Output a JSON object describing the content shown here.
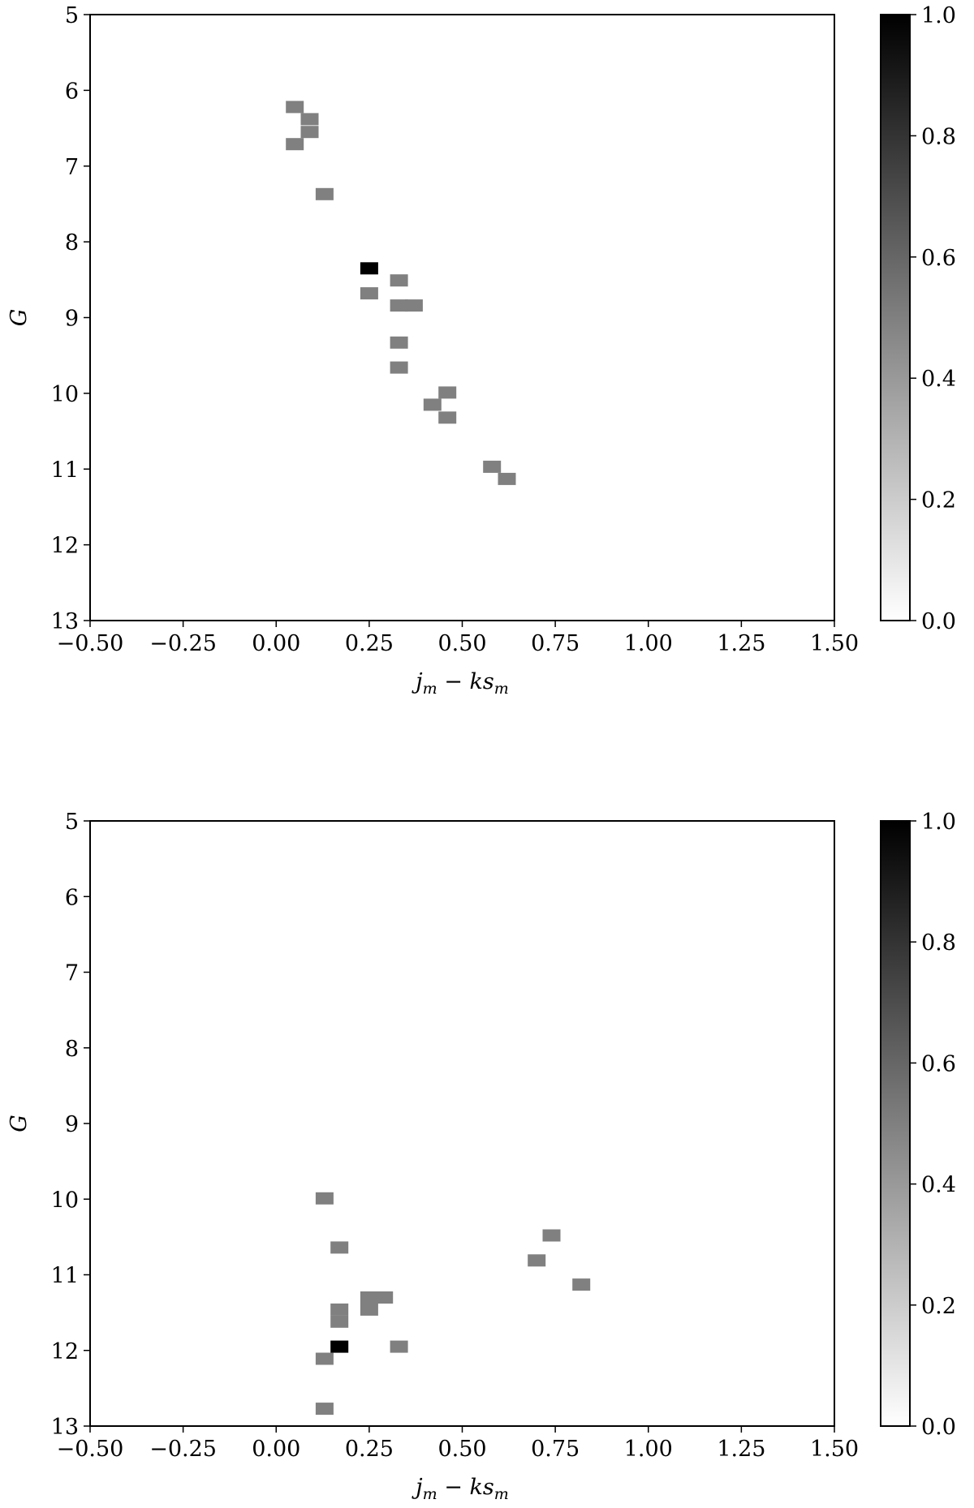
{
  "chart_data": [
    {
      "type": "heatmap",
      "title": "",
      "xlabel": "j_m − ks_m",
      "ylabel": "G",
      "xlim": [
        -0.5,
        1.5
      ],
      "ylim": [
        13,
        5
      ],
      "y_inverted": true,
      "xticks": [
        "−0.50",
        "−0.25",
        "0.00",
        "0.25",
        "0.50",
        "0.75",
        "1.00",
        "1.25",
        "1.50"
      ],
      "yticks": [
        "5",
        "6",
        "7",
        "8",
        "9",
        "10",
        "11",
        "12",
        "13"
      ],
      "colorbar": {
        "range": [
          0,
          1
        ],
        "ticks": [
          "0.0",
          "0.2",
          "0.4",
          "0.6",
          "0.8",
          "1.0"
        ],
        "colormap": "gray_r"
      },
      "cells": [
        {
          "x": 0.05,
          "y": 6.22,
          "value": 0.5
        },
        {
          "x": 0.09,
          "y": 6.38,
          "value": 0.5
        },
        {
          "x": 0.09,
          "y": 6.55,
          "value": 0.5
        },
        {
          "x": 0.05,
          "y": 6.71,
          "value": 0.5
        },
        {
          "x": 0.13,
          "y": 7.37,
          "value": 0.5
        },
        {
          "x": 0.25,
          "y": 8.35,
          "value": 1.0
        },
        {
          "x": 0.33,
          "y": 8.51,
          "value": 0.5
        },
        {
          "x": 0.25,
          "y": 8.68,
          "value": 0.5
        },
        {
          "x": 0.33,
          "y": 8.84,
          "value": 0.5
        },
        {
          "x": 0.37,
          "y": 8.84,
          "value": 0.5
        },
        {
          "x": 0.33,
          "y": 9.33,
          "value": 0.5
        },
        {
          "x": 0.33,
          "y": 9.66,
          "value": 0.5
        },
        {
          "x": 0.46,
          "y": 9.99,
          "value": 0.5
        },
        {
          "x": 0.42,
          "y": 10.15,
          "value": 0.5
        },
        {
          "x": 0.46,
          "y": 10.32,
          "value": 0.5
        },
        {
          "x": 0.58,
          "y": 10.97,
          "value": 0.5
        },
        {
          "x": 0.62,
          "y": 11.13,
          "value": 0.5
        }
      ]
    },
    {
      "type": "heatmap",
      "title": "",
      "xlabel": "j_m − ks_m",
      "ylabel": "G",
      "xlim": [
        -0.5,
        1.5
      ],
      "ylim": [
        13,
        5
      ],
      "y_inverted": true,
      "xticks": [
        "−0.50",
        "−0.25",
        "0.00",
        "0.25",
        "0.50",
        "0.75",
        "1.00",
        "1.25",
        "1.50"
      ],
      "yticks": [
        "5",
        "6",
        "7",
        "8",
        "9",
        "10",
        "11",
        "12",
        "13"
      ],
      "colorbar": {
        "range": [
          0,
          1
        ],
        "ticks": [
          "0.0",
          "0.2",
          "0.4",
          "0.6",
          "0.8",
          "1.0"
        ],
        "colormap": "gray_r"
      },
      "cells": [
        {
          "x": 0.13,
          "y": 9.99,
          "value": 0.5
        },
        {
          "x": 0.74,
          "y": 10.48,
          "value": 0.5
        },
        {
          "x": 0.17,
          "y": 10.64,
          "value": 0.5
        },
        {
          "x": 0.7,
          "y": 10.81,
          "value": 0.5
        },
        {
          "x": 0.82,
          "y": 11.13,
          "value": 0.5
        },
        {
          "x": 0.25,
          "y": 11.3,
          "value": 0.5
        },
        {
          "x": 0.29,
          "y": 11.3,
          "value": 0.5
        },
        {
          "x": 0.25,
          "y": 11.46,
          "value": 0.5
        },
        {
          "x": 0.17,
          "y": 11.46,
          "value": 0.5
        },
        {
          "x": 0.17,
          "y": 11.62,
          "value": 0.5
        },
        {
          "x": 0.17,
          "y": 11.95,
          "value": 1.0
        },
        {
          "x": 0.33,
          "y": 11.95,
          "value": 0.5
        },
        {
          "x": 0.13,
          "y": 12.11,
          "value": 0.5
        },
        {
          "x": 0.13,
          "y": 12.77,
          "value": 0.5
        }
      ]
    }
  ]
}
